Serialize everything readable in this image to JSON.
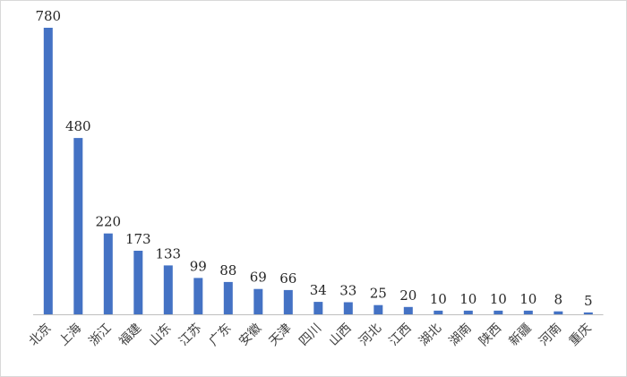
{
  "chart_data": {
    "type": "bar",
    "categories": [
      "北京",
      "上海",
      "浙江",
      "福建",
      "山东",
      "江苏",
      "广东",
      "安徽",
      "天津",
      "四川",
      "山西",
      "河北",
      "江西",
      "湖北",
      "湖南",
      "陕西",
      "新疆",
      "河南",
      "重庆"
    ],
    "values": [
      780,
      480,
      220,
      173,
      133,
      99,
      88,
      69,
      66,
      34,
      33,
      25,
      20,
      10,
      10,
      10,
      10,
      8,
      5
    ],
    "title": "",
    "xlabel": "",
    "ylabel": "",
    "ylim": [
      0,
      780
    ],
    "grid": false,
    "legend": "none",
    "colors": {
      "bar": "#4472C4",
      "axis": "#bfbfbf",
      "label": "#262626"
    }
  }
}
